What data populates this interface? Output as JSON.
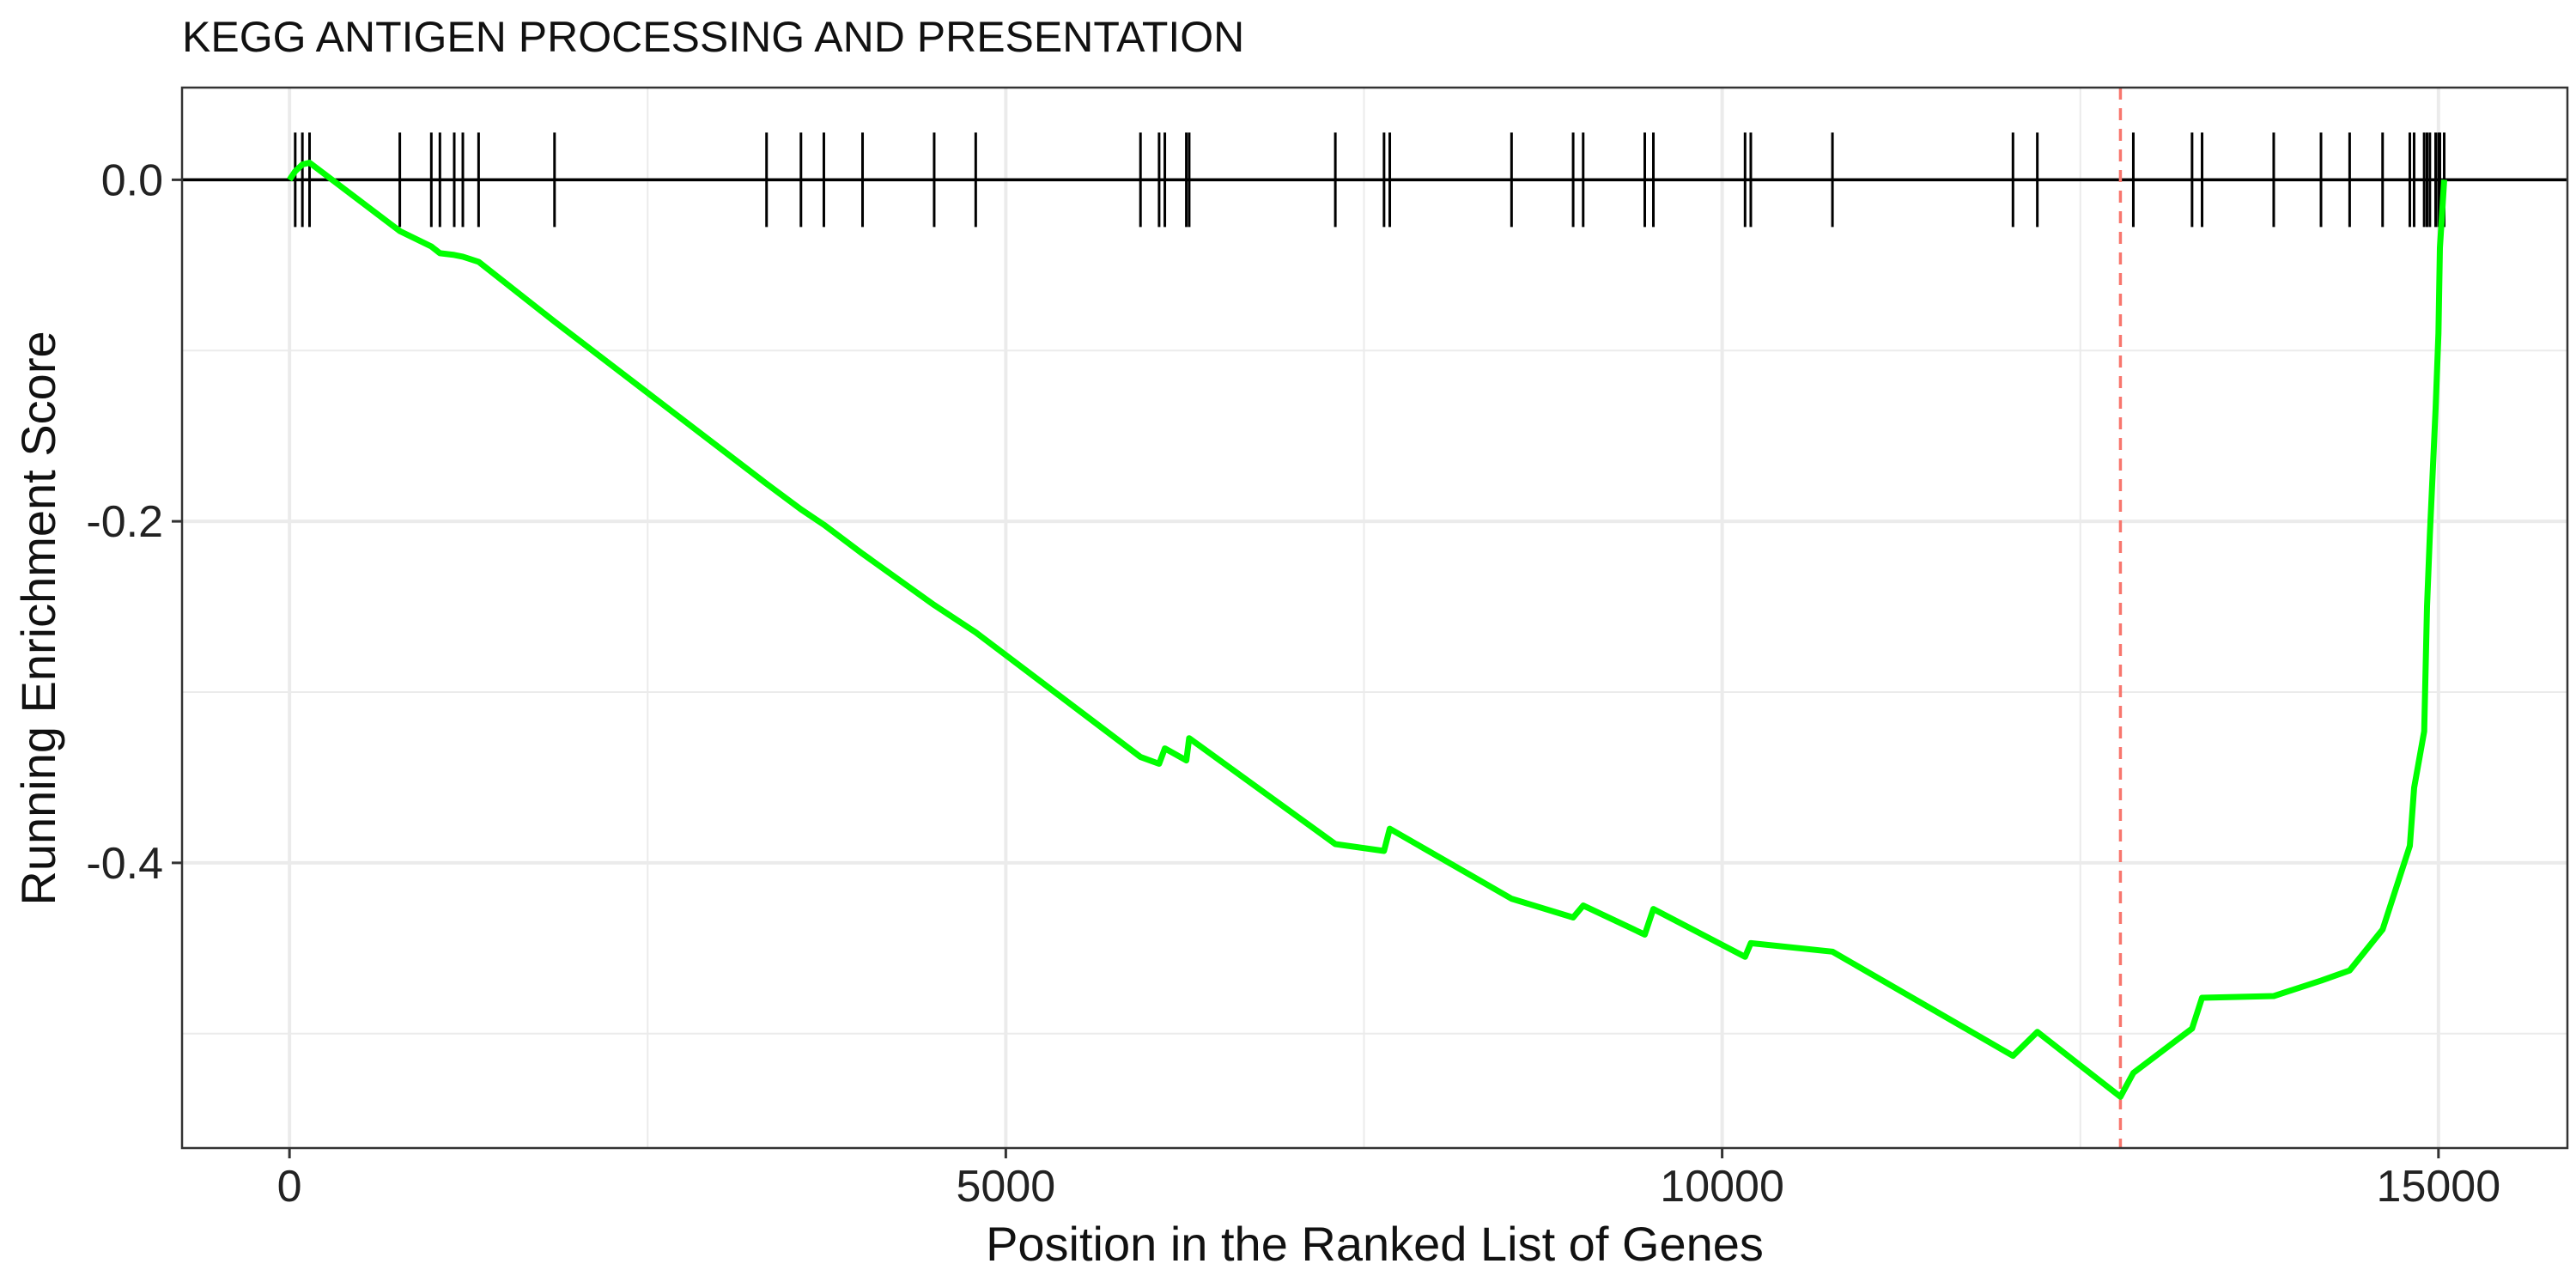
{
  "chart_data": {
    "type": "line",
    "title": "KEGG ANTIGEN PROCESSING AND PRESENTATION",
    "xlabel": "Position in the Ranked List of Genes",
    "ylabel": "Running Enrichment Score",
    "xlim": [
      -750,
      15900
    ],
    "ylim": [
      -0.567,
      0.054
    ],
    "x_ticks": [
      0,
      5000,
      10000,
      15000
    ],
    "x_tick_labels": [
      "0",
      "5000",
      "10000",
      "15000"
    ],
    "y_ticks": [
      0.0,
      -0.2,
      -0.4
    ],
    "y_tick_labels": [
      "0.0",
      "-0.2",
      "-0.4"
    ],
    "grid": true,
    "zero_line": 0.0,
    "min_es_position": 12780,
    "colors": {
      "line": "#00ff00",
      "marker": "#000000",
      "min_line": "#f8766d",
      "grid": "#ebebeb"
    },
    "hit_positions": [
      40,
      90,
      140,
      770,
      990,
      1050,
      1150,
      1210,
      1320,
      1850,
      3330,
      3570,
      3730,
      4000,
      4500,
      4790,
      5940,
      6070,
      6110,
      6260,
      6280,
      7300,
      7640,
      7680,
      8530,
      8960,
      9030,
      9460,
      9520,
      10160,
      10200,
      10770,
      12030,
      12200,
      12870,
      13280,
      13350,
      13850,
      14180,
      14380,
      14610,
      14800,
      14830,
      14900,
      14920,
      14940,
      14980,
      15000,
      15010,
      15040
    ],
    "series": [
      {
        "x": [
          0,
          40,
          90,
          140,
          770,
          990,
          1050,
          1150,
          1210,
          1320,
          1850,
          3330,
          3570,
          3730,
          4000,
          4500,
          4790,
          5940,
          6070,
          6110,
          6260,
          6280,
          7300,
          7640,
          7680,
          8530,
          8960,
          9030,
          9460,
          9520,
          10160,
          10200,
          10770,
          12030,
          12200,
          12780,
          12870,
          13280,
          13350,
          13850,
          14180,
          14380,
          14610,
          14800,
          14830,
          14900,
          14920,
          14940,
          14980,
          15000,
          15010,
          15040
        ],
        "y": [
          0.0,
          0.005,
          0.009,
          0.01,
          -0.03,
          -0.039,
          -0.043,
          -0.044,
          -0.045,
          -0.048,
          -0.083,
          -0.178,
          -0.193,
          -0.202,
          -0.219,
          -0.249,
          -0.265,
          -0.338,
          -0.342,
          -0.333,
          -0.34,
          -0.327,
          -0.389,
          -0.393,
          -0.38,
          -0.421,
          -0.432,
          -0.425,
          -0.442,
          -0.427,
          -0.455,
          -0.447,
          -0.452,
          -0.513,
          -0.499,
          -0.537,
          -0.523,
          -0.497,
          -0.479,
          -0.478,
          -0.469,
          -0.463,
          -0.439,
          -0.39,
          -0.356,
          -0.323,
          -0.25,
          -0.208,
          -0.134,
          -0.09,
          -0.04,
          0.0
        ]
      }
    ]
  }
}
